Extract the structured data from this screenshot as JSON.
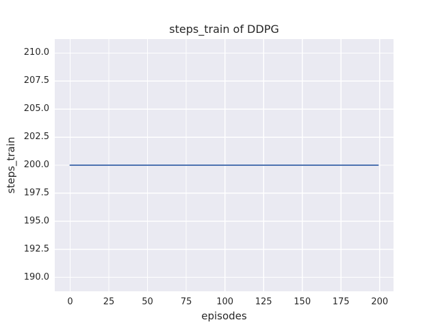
{
  "chart_data": {
    "type": "line",
    "title": "steps_train of DDPG",
    "xlabel": "episodes",
    "ylabel": "steps_train",
    "xlim": [
      -9.95,
      208.95
    ],
    "ylim": [
      188.75,
      211.25
    ],
    "x_ticks": [
      0,
      25,
      50,
      75,
      100,
      125,
      150,
      175,
      200
    ],
    "x_tick_labels": [
      "0",
      "25",
      "50",
      "75",
      "100",
      "125",
      "150",
      "175",
      "200"
    ],
    "y_ticks": [
      190.0,
      192.5,
      195.0,
      197.5,
      200.0,
      202.5,
      205.0,
      207.5,
      210.0
    ],
    "y_tick_labels": [
      "190.0",
      "192.5",
      "195.0",
      "197.5",
      "200.0",
      "202.5",
      "205.0",
      "207.5",
      "210.0"
    ],
    "grid": true,
    "legend": false,
    "plot_background_color": "#eaeaf2",
    "grid_color": "#ffffff",
    "figure_background_color": "#ffffff",
    "series": [
      {
        "name": "steps_train",
        "color": "#4c72b0",
        "line_width": 2,
        "x": [
          0,
          199
        ],
        "y": [
          200,
          200
        ]
      }
    ]
  }
}
